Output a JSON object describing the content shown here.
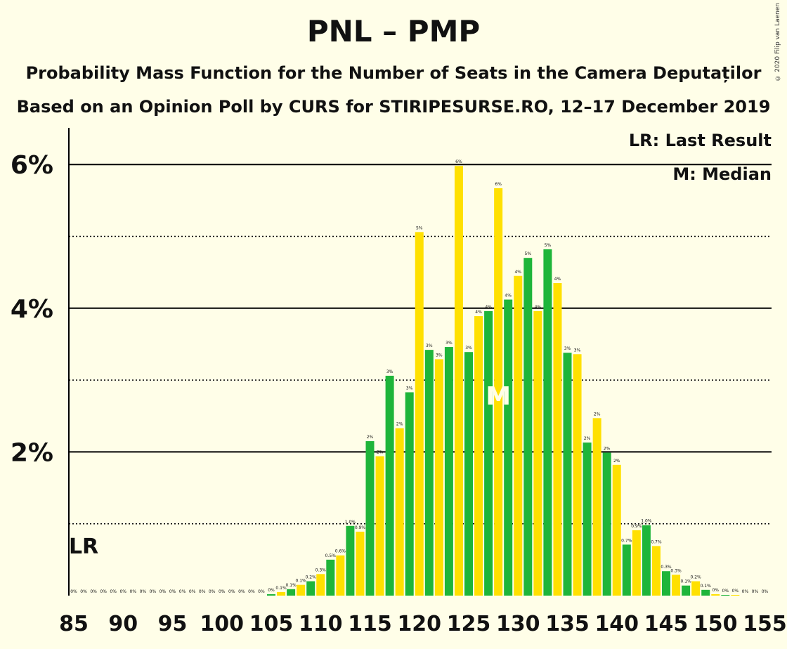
{
  "title": "PNL – PMP",
  "subtitle": "Probability Mass Function for the Number of Seats in the Camera Deputaților",
  "subtitle2": "Based on an Opinion Poll by CURS for STIRIPESURSE.RO, 12–17 December 2019",
  "copyright": "© 2020 Filip van Laenen",
  "legend": {
    "lr": "LR: Last Result",
    "m": "M: Median"
  },
  "markers": {
    "lr_label": "LR",
    "median_label": "M"
  },
  "colors": {
    "green": "#1EB53A",
    "yellow": "#FFE000",
    "background": "#FFFEE8"
  },
  "chart_data": {
    "type": "bar",
    "x": [
      85,
      86,
      87,
      88,
      89,
      90,
      91,
      92,
      93,
      94,
      95,
      96,
      97,
      98,
      99,
      100,
      101,
      102,
      103,
      104,
      105,
      106,
      107,
      108,
      109,
      110,
      111,
      112,
      113,
      114,
      115,
      116,
      117,
      118,
      119,
      120,
      121,
      122,
      123,
      124,
      125,
      126,
      127,
      128,
      129,
      130,
      131,
      132,
      133,
      134,
      135,
      136,
      137,
      138,
      139,
      140,
      141,
      142,
      143,
      144,
      145,
      146,
      147,
      148,
      149,
      150,
      151,
      152,
      153,
      154,
      155
    ],
    "values": [
      0,
      0,
      0,
      0,
      0,
      0,
      0,
      0,
      0,
      0,
      0,
      0,
      0,
      0,
      0,
      0,
      0,
      0,
      0,
      0,
      0.02,
      0.05,
      0.09,
      0.15,
      0.2,
      0.3,
      0.5,
      0.56,
      0.97,
      0.89,
      2.15,
      1.94,
      3.06,
      2.33,
      2.83,
      5.06,
      3.42,
      3.29,
      3.46,
      5.98,
      3.39,
      3.89,
      3.96,
      5.67,
      4.12,
      4.45,
      4.7,
      3.96,
      4.82,
      4.35,
      3.38,
      3.36,
      2.13,
      2.47,
      1.99,
      1.82,
      0.71,
      0.91,
      0.98,
      0.69,
      0.34,
      0.29,
      0.14,
      0.2,
      0.08,
      0.02,
      0.01,
      0.01,
      0,
      0,
      0
    ],
    "value_labels": [
      "0%",
      "0%",
      "0%",
      "0%",
      "0%",
      "0%",
      "0%",
      "0%",
      "0%",
      "0%",
      "0%",
      "0%",
      "0%",
      "0%",
      "0%",
      "0%",
      "0%",
      "0%",
      "0%",
      "0%",
      "0%",
      "0.1%",
      "0.1%",
      "0.1%",
      "0.2%",
      "0.3%",
      "0.5%",
      "0.6%",
      "1.0%",
      "0.9%",
      "2%",
      "2%",
      "3%",
      "2%",
      "3%",
      "5%",
      "3%",
      "3%",
      "3%",
      "6%",
      "3%",
      "4%",
      "4%",
      "6%",
      "4%",
      "4%",
      "5%",
      "4%",
      "5%",
      "4%",
      "3%",
      "3%",
      "2%",
      "2%",
      "2%",
      "2%",
      "0.7%",
      "0.9%",
      "1.0%",
      "0.7%",
      "0.3%",
      "0.3%",
      "0.1%",
      "0.2%",
      "0.1%",
      "0%",
      "0%",
      "0%",
      "0%",
      "0%",
      "0%"
    ],
    "x_ticks": [
      "85",
      "90",
      "95",
      "100",
      "105",
      "110",
      "115",
      "120",
      "125",
      "130",
      "135",
      "140",
      "145",
      "150",
      "155"
    ],
    "y_ticks": [
      "2%",
      "4%",
      "6%"
    ],
    "ylim": [
      0,
      6.5
    ],
    "last_result_seat": 86,
    "median_seat": 128,
    "grid": true
  }
}
